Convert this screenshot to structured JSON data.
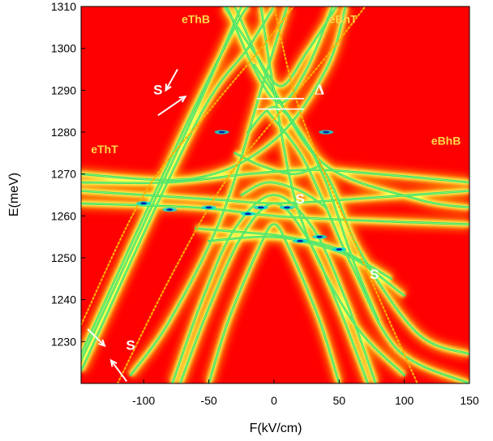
{
  "chart_data": {
    "type": "heatmap",
    "xlabel": "F(kV/cm)",
    "ylabel": "E(meV)",
    "xlim": [
      -148,
      150
    ],
    "ylim": [
      1220,
      1310
    ],
    "x_ticks": [
      -100,
      -50,
      0,
      50,
      100,
      150
    ],
    "y_ticks": [
      1230,
      1240,
      1250,
      1260,
      1270,
      1280,
      1290,
      1300,
      1310
    ],
    "grid": false,
    "background_color": "#ff0000",
    "colormap": [
      "#ff0000",
      "#ff8c00",
      "#ffff55",
      "#33dd66",
      "#00dddd",
      "#0022aa"
    ],
    "curves": [
      {
        "name": "",
        "points": [
          [
            -148,
            1223
          ],
          [
            -60,
            1282
          ],
          [
            -20,
            1300
          ],
          [
            0,
            1310
          ]
        ]
      },
      {
        "name": "",
        "points": [
          [
            -148,
            1227
          ],
          [
            -70,
            1280
          ],
          [
            -30,
            1305
          ],
          [
            -20,
            1310
          ]
        ]
      },
      {
        "name": "",
        "points": [
          [
            -148,
            1225.5
          ],
          [
            -100,
            1258
          ],
          [
            -50,
            1292
          ],
          [
            -25,
            1310
          ]
        ]
      },
      {
        "name": "",
        "points": [
          [
            -36,
            1310
          ],
          [
            -15,
            1295
          ],
          [
            5,
            1287
          ],
          [
            25,
            1295
          ],
          [
            45,
            1310
          ]
        ]
      },
      {
        "name": "",
        "points": [
          [
            -38,
            1310
          ],
          [
            -15,
            1299
          ],
          [
            5,
            1291
          ],
          [
            25,
            1299
          ],
          [
            48,
            1310
          ]
        ]
      },
      {
        "name": "",
        "points": [
          [
            -30,
            1310
          ],
          [
            0,
            1290
          ],
          [
            40,
            1272
          ],
          [
            110,
            1264
          ],
          [
            150,
            1262
          ]
        ]
      },
      {
        "name": "",
        "points": [
          [
            -150,
            1270
          ],
          [
            -60,
            1269
          ],
          [
            0,
            1278
          ],
          [
            40,
            1295
          ],
          [
            55,
            1310
          ]
        ]
      },
      {
        "name": "",
        "points": [
          [
            -15,
            1296
          ],
          [
            40,
            1270
          ],
          [
            65,
            1252
          ],
          [
            110,
            1232
          ],
          [
            150,
            1227
          ]
        ]
      },
      {
        "name": "",
        "points": [
          [
            -150,
            1263
          ],
          [
            -60,
            1262
          ],
          [
            0,
            1260
          ],
          [
            60,
            1259
          ],
          [
            150,
            1258
          ]
        ]
      },
      {
        "name": "",
        "points": [
          [
            -150,
            1266
          ],
          [
            -50,
            1264
          ],
          [
            0,
            1263
          ],
          [
            60,
            1264
          ],
          [
            150,
            1266
          ]
        ]
      },
      {
        "name": "",
        "points": [
          [
            -150,
            1268
          ],
          [
            -80,
            1268
          ],
          [
            -20,
            1270
          ],
          [
            30,
            1271
          ],
          [
            80,
            1270
          ],
          [
            150,
            1268
          ]
        ]
      },
      {
        "name": "",
        "points": [
          [
            -60,
            1257
          ],
          [
            -20,
            1256
          ],
          [
            10,
            1255
          ],
          [
            50,
            1252
          ],
          [
            90,
            1245
          ]
        ]
      },
      {
        "name": "",
        "points": [
          [
            -50,
            1254
          ],
          [
            -10,
            1255
          ],
          [
            20,
            1254
          ],
          [
            60,
            1250
          ],
          [
            100,
            1241
          ]
        ]
      },
      {
        "name": "",
        "points": [
          [
            -78,
            1220
          ],
          [
            -55,
            1240
          ],
          [
            -30,
            1257
          ],
          [
            0,
            1265
          ],
          [
            30,
            1257
          ],
          [
            55,
            1240
          ],
          [
            78,
            1220
          ]
        ]
      },
      {
        "name": "",
        "points": [
          [
            -72,
            1220
          ],
          [
            -50,
            1238
          ],
          [
            -25,
            1255
          ],
          [
            0,
            1263
          ],
          [
            25,
            1255
          ],
          [
            50,
            1238
          ],
          [
            72,
            1220
          ]
        ]
      },
      {
        "name": "",
        "points": [
          [
            -50,
            1220
          ],
          [
            -35,
            1235
          ],
          [
            -12,
            1252
          ],
          [
            0,
            1258
          ],
          [
            12,
            1252
          ],
          [
            35,
            1235
          ],
          [
            50,
            1220
          ]
        ]
      },
      {
        "name": "",
        "points": [
          [
            -20,
            1280
          ],
          [
            0,
            1286
          ],
          [
            20,
            1280
          ],
          [
            40,
            1268
          ],
          [
            60,
            1250
          ],
          [
            80,
            1235
          ]
        ]
      },
      {
        "name": "",
        "points": [
          [
            -5,
            1285
          ],
          [
            20,
            1275
          ],
          [
            40,
            1262
          ],
          [
            60,
            1248
          ],
          [
            95,
            1228
          ],
          [
            150,
            1220
          ]
        ]
      },
      {
        "name": "",
        "points": [
          [
            -30,
            1275
          ],
          [
            -10,
            1272
          ],
          [
            15,
            1270
          ],
          [
            35,
            1272
          ]
        ]
      },
      {
        "name": "",
        "points": [
          [
            -25,
            1265
          ],
          [
            -5,
            1268
          ],
          [
            20,
            1266
          ],
          [
            40,
            1262
          ]
        ]
      },
      {
        "name": "",
        "points": [
          [
            -10,
            1310
          ],
          [
            0,
            1290
          ],
          [
            20,
            1260
          ],
          [
            60,
            1235
          ],
          [
            100,
            1222
          ]
        ]
      },
      {
        "name": "",
        "points": [
          [
            10,
            1310
          ],
          [
            -10,
            1290
          ],
          [
            -40,
            1260
          ],
          [
            -80,
            1235
          ],
          [
            -110,
            1222
          ]
        ]
      }
    ],
    "dotted_curves": [
      {
        "name": "",
        "points": [
          [
            -148,
            1234
          ],
          [
            -100,
            1265
          ],
          [
            -50,
            1285
          ],
          [
            -10,
            1300
          ],
          [
            15,
            1310
          ]
        ]
      },
      {
        "name": "",
        "points": [
          [
            -120,
            1220
          ],
          [
            -80,
            1245
          ],
          [
            -40,
            1267
          ],
          [
            0,
            1283
          ],
          [
            40,
            1298
          ],
          [
            70,
            1310
          ]
        ]
      },
      {
        "name": "",
        "points": [
          [
            0,
            1310
          ],
          [
            20,
            1285
          ],
          [
            60,
            1255
          ],
          [
            110,
            1220
          ]
        ]
      }
    ],
    "bright_spots": [
      [
        -100,
        1263
      ],
      [
        -80,
        1261.5
      ],
      [
        -50,
        1262
      ],
      [
        -20,
        1260.5
      ],
      [
        20,
        1254
      ],
      [
        35,
        1255
      ],
      [
        50,
        1252
      ],
      [
        -40,
        1280
      ],
      [
        40,
        1280
      ],
      [
        -10,
        1262
      ],
      [
        10,
        1262
      ]
    ],
    "annotations": [
      {
        "text": "eThB",
        "x": -60,
        "y": 1306,
        "color": "#ffd84a"
      },
      {
        "text": "eBhT",
        "x": 53,
        "y": 1306,
        "color": "#ffd84a"
      },
      {
        "text": "eThT",
        "x": -130,
        "y": 1275,
        "color": "#ffd84a"
      },
      {
        "text": "eBhB",
        "x": 132,
        "y": 1277,
        "color": "#ffd84a"
      },
      {
        "text": "S",
        "x": -89,
        "y": 1289,
        "color": "#ffffff"
      },
      {
        "text": "Δ",
        "x": 35,
        "y": 1289,
        "color": "#ffffff"
      },
      {
        "text": "S",
        "x": 20,
        "y": 1263,
        "color": "#ffffff"
      },
      {
        "text": "S",
        "x": 77,
        "y": 1245,
        "color": "#ffffff"
      },
      {
        "text": "S",
        "x": -110,
        "y": 1228,
        "color": "#ffffff"
      }
    ],
    "arrows": [
      {
        "from": [
          -74,
          1295
        ],
        "to": [
          -83,
          1290
        ]
      },
      {
        "from": [
          -89,
          1284
        ],
        "to": [
          -68,
          1288.5
        ]
      },
      {
        "from": [
          -143,
          1233
        ],
        "to": [
          -130,
          1229
        ]
      },
      {
        "from": [
          -113,
          1220.5
        ],
        "to": [
          -125,
          1225.5
        ]
      }
    ],
    "delta_lines": [
      {
        "x1": -13,
        "x2": 23,
        "y": 1288
      },
      {
        "x1": -13,
        "x2": 23,
        "y": 1285.5
      }
    ]
  }
}
